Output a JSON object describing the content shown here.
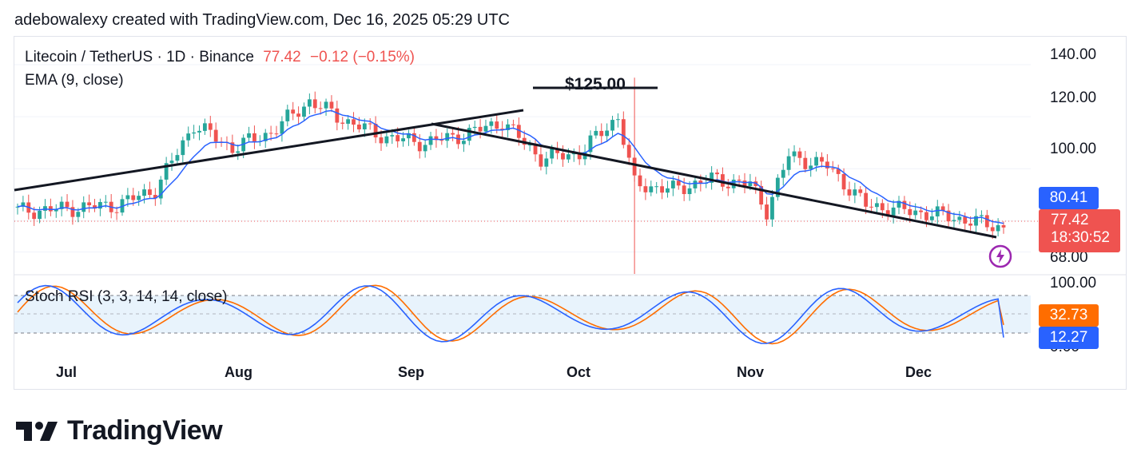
{
  "caption": "adebowalexy created with TradingView.com, Dec 16, 2025 05:29 UTC",
  "header": {
    "symbol": "Litecoin / TetherUS · 1D · Binance",
    "last": "77.42",
    "change": "−0.12 (−0.15%)",
    "indicator": "EMA (9, close)",
    "annotation": "$125.00"
  },
  "colors": {
    "up": "#26a69a",
    "down": "#ef5350",
    "ema": "#2962ff",
    "trend": "#131722",
    "k_line": "#2962ff",
    "d_line": "#ff6d00",
    "band": "#e8f3fc",
    "axis_text": "#131722"
  },
  "price_axis": {
    "ticks": [
      "140.00",
      "120.00",
      "100.00",
      "68.00"
    ],
    "ema_badge": "80.41",
    "price_badge": "77.42",
    "countdown": "18:30:52"
  },
  "rsi": {
    "label": "Stoch RSI (3, 3, 14, 14, close)",
    "ticks": [
      "100.00",
      "0.00"
    ],
    "d_badge": "32.73",
    "k_badge": "12.27"
  },
  "months": [
    "Jul",
    "Aug",
    "Sep",
    "Oct",
    "Nov",
    "Dec"
  ],
  "logo_text": "TradingView",
  "chart_data": {
    "type": "candlestick",
    "symbol": "Litecoin / TetherUS",
    "interval": "1D",
    "exchange": "Binance",
    "ylim": [
      66,
      144
    ],
    "series": [
      {
        "name": "EMA (9, close)",
        "type": "line"
      },
      {
        "name": "Stoch RSI %K",
        "type": "line"
      },
      {
        "name": "Stoch RSI %D",
        "type": "line"
      }
    ],
    "trendlines": [
      {
        "from": [
          "2025-06-23",
          84.5
        ],
        "to": [
          "2025-09-21",
          115.5
        ]
      },
      {
        "from": [
          "2025-09-06",
          110.0
        ],
        "to": [
          "2025-12-16",
          73.5
        ]
      }
    ],
    "horizontal_level": 125.0,
    "closes": [
      {
        "date": "2025-06-24",
        "close": 84
      },
      {
        "date": "2025-07-08",
        "close": 86
      },
      {
        "date": "2025-07-15",
        "close": 92
      },
      {
        "date": "2025-07-22",
        "close": 117
      },
      {
        "date": "2025-07-29",
        "close": 108
      },
      {
        "date": "2025-08-05",
        "close": 114
      },
      {
        "date": "2025-08-12",
        "close": 126
      },
      {
        "date": "2025-08-19",
        "close": 118
      },
      {
        "date": "2025-08-26",
        "close": 112
      },
      {
        "date": "2025-09-02",
        "close": 110
      },
      {
        "date": "2025-09-09",
        "close": 113
      },
      {
        "date": "2025-09-16",
        "close": 118
      },
      {
        "date": "2025-09-23",
        "close": 104
      },
      {
        "date": "2025-09-30",
        "close": 106
      },
      {
        "date": "2025-10-07",
        "close": 120
      },
      {
        "date": "2025-10-10",
        "close": 94
      },
      {
        "date": "2025-10-17",
        "close": 92
      },
      {
        "date": "2025-10-24",
        "close": 96
      },
      {
        "date": "2025-10-31",
        "close": 94
      },
      {
        "date": "2025-11-03",
        "close": 84
      },
      {
        "date": "2025-11-07",
        "close": 105
      },
      {
        "date": "2025-11-14",
        "close": 101
      },
      {
        "date": "2025-11-21",
        "close": 86
      },
      {
        "date": "2025-11-28",
        "close": 84
      },
      {
        "date": "2025-12-05",
        "close": 82
      },
      {
        "date": "2025-12-16",
        "close": 77.42
      }
    ]
  }
}
